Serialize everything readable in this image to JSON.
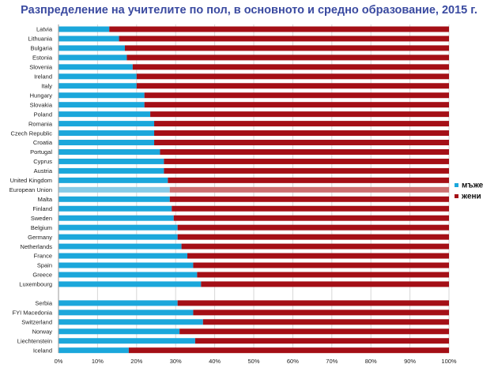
{
  "title": "Разпределение на учителите по пол, в основното и средно образование, 2015 г.",
  "chart_data": {
    "type": "bar",
    "orientation": "horizontal",
    "stacked": true,
    "title": "Разпределение на учителите по пол, в основното и средно образование, 2015 г.",
    "xlabel": "",
    "ylabel": "",
    "xlim": [
      0,
      100
    ],
    "x_ticks": [
      "0%",
      "10%",
      "20%",
      "30%",
      "40%",
      "50%",
      "60%",
      "70%",
      "80%",
      "90%",
      "100%"
    ],
    "legend_position": "right",
    "grid": true,
    "categories": [
      "Latvia",
      "Lithuania",
      "Bulgaria",
      "Estonia",
      "Slovenia",
      "Ireland",
      "Italy",
      "Hungary",
      "Slovakia",
      "Poland",
      "Romania",
      "Czech Republic",
      "Croatia",
      "Portugal",
      "Cyprus",
      "Austria",
      "United Kingdom",
      "European Union",
      "Malta",
      "Finland",
      "Sweden",
      "Belgium",
      "Germany",
      "Netherlands",
      "France",
      "Spain",
      "Greece",
      "Luxembourg",
      "Serbia",
      "FYI Macedonia",
      "Switzerland",
      "Norway",
      "Liechtenstein",
      "Iceland"
    ],
    "group_break_after_index": 27,
    "series": [
      {
        "name": "мъже",
        "color": "#1ba7db",
        "values": [
          13,
          15.5,
          17,
          17.5,
          19,
          20,
          20,
          22,
          22,
          23.5,
          24.5,
          24.5,
          24.5,
          26,
          27,
          27,
          28,
          28.5,
          28.5,
          29,
          29.5,
          30.5,
          30.5,
          31.5,
          33,
          34.5,
          35.5,
          36.5,
          30.5,
          34.5,
          37,
          31,
          35,
          18
        ]
      },
      {
        "name": "жени",
        "color": "#a40f16",
        "values": [
          87,
          84.5,
          83,
          82.5,
          81,
          80,
          80,
          78,
          78,
          76.5,
          75.5,
          75.5,
          75.5,
          74,
          73,
          73,
          72,
          71.5,
          71.5,
          71,
          70.5,
          69.5,
          69.5,
          68.5,
          67,
          65.5,
          64.5,
          63.5,
          69.5,
          65.5,
          63,
          69,
          65,
          82
        ]
      }
    ],
    "highlight_category": "European Union",
    "highlight_colors": {
      "мъже": "#88cbe6",
      "жени": "#cc7070"
    }
  }
}
